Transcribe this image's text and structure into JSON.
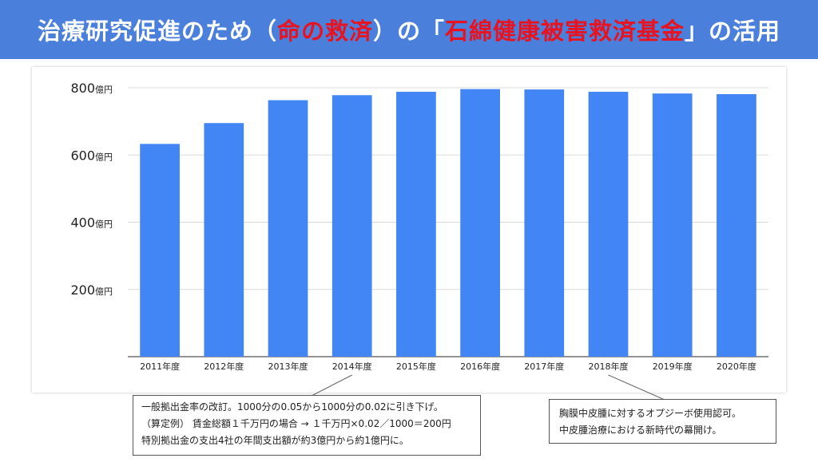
{
  "header": {
    "title_part1": "治療研究促進のため（",
    "title_highlight1": "命の救済",
    "title_part2": "）の「",
    "title_highlight2": "石綿健康被害救済基金",
    "title_part3": "」の活用",
    "accent_color": "#4a7fdc",
    "highlight_color": "#e8131f"
  },
  "chart_data": {
    "type": "bar",
    "categories": [
      "2011年度",
      "2012年度",
      "2013年度",
      "2014年度",
      "2015年度",
      "2016年度",
      "2017年度",
      "2018年度",
      "2019年度",
      "2020年度"
    ],
    "values": [
      633,
      695,
      763,
      778,
      788,
      796,
      795,
      788,
      783,
      781
    ],
    "y_ticks": [
      200,
      400,
      600,
      800
    ],
    "y_tick_unit": "億円",
    "ylim": [
      0,
      800
    ],
    "bar_color": "#4285f4",
    "grid": true,
    "title": "",
    "xlabel": "",
    "ylabel": ""
  },
  "annotations": [
    {
      "target_category": "2014年度",
      "lines": [
        "一般拠出金率の改訂。1000分の0.05から1000分の0.02に引き下げ。",
        "（算定例） 賃金総額１千万円の場合 → １千万円×0.02／1000＝200円",
        "特別拠出金の支出4社の年間支出額が約3億円から約1億円に。"
      ]
    },
    {
      "target_category": "2018年度",
      "lines": [
        "胸膜中皮腫に対するオプジーボ使用認可。",
        "中皮腫治療における新時代の幕開け。"
      ]
    }
  ]
}
